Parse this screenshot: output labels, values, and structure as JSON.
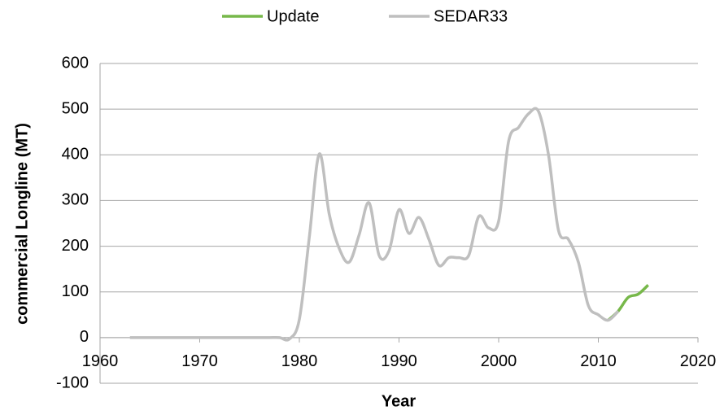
{
  "chart_data": {
    "type": "line",
    "xlabel": "Year",
    "ylabel": "commercial Longline (MT)",
    "xlim": [
      1960,
      2020
    ],
    "xticks": [
      1960,
      1970,
      1980,
      1990,
      2000,
      2010,
      2020
    ],
    "ylim": [
      -100,
      600
    ],
    "yticks": [
      -100,
      0,
      100,
      200,
      300,
      400,
      500,
      600
    ],
    "grid": true,
    "legend": "top",
    "series": [
      {
        "name": "Update",
        "color": "#77b84a",
        "x": [
          2011,
          2012,
          2013,
          2014,
          2015
        ],
        "values": [
          38,
          58,
          88,
          95,
          115
        ]
      },
      {
        "name": "SEDAR33",
        "color": "#bfbfbf",
        "x": [
          1963,
          1964,
          1965,
          1966,
          1967,
          1968,
          1969,
          1970,
          1971,
          1972,
          1973,
          1974,
          1975,
          1976,
          1977,
          1978,
          1979,
          1980,
          1981,
          1982,
          1983,
          1984,
          1985,
          1986,
          1987,
          1988,
          1989,
          1990,
          1991,
          1992,
          1993,
          1994,
          1995,
          1996,
          1997,
          1998,
          1999,
          2000,
          2001,
          2002,
          2003,
          2004,
          2005,
          2006,
          2007,
          2008,
          2009,
          2010,
          2011,
          2012
        ],
        "values": [
          0,
          0,
          0,
          0,
          0,
          0,
          0,
          0,
          0,
          0,
          0,
          0,
          0,
          0,
          0,
          0,
          -3,
          40,
          220,
          402,
          270,
          195,
          165,
          225,
          295,
          180,
          190,
          280,
          228,
          263,
          215,
          158,
          175,
          175,
          180,
          265,
          240,
          255,
          430,
          460,
          490,
          495,
          400,
          235,
          215,
          165,
          70,
          50,
          38,
          58
        ]
      }
    ]
  }
}
